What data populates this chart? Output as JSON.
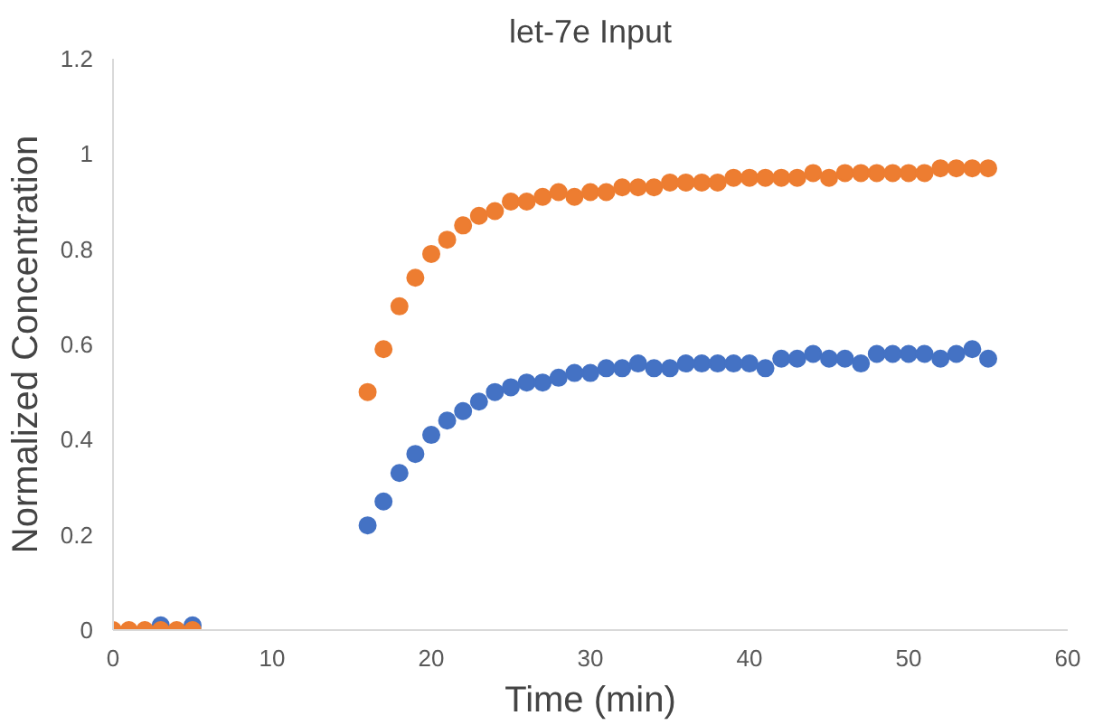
{
  "chart_data": {
    "type": "scatter",
    "title": "let-7e Input",
    "xlabel": "Time (min)",
    "ylabel": "Normalized Concentration",
    "marker": "circle",
    "grid": false,
    "xlim": [
      0,
      60
    ],
    "xticks": [
      0,
      10,
      20,
      30,
      40,
      50,
      60
    ],
    "ylim": [
      0,
      1.2
    ],
    "yticks": [
      0,
      0.2,
      0.4,
      0.6,
      0.8,
      1,
      1.2
    ],
    "x": [
      0,
      1,
      2,
      3,
      4,
      5,
      16,
      17,
      18,
      19,
      20,
      21,
      22,
      23,
      24,
      25,
      26,
      27,
      28,
      29,
      30,
      31,
      32,
      33,
      34,
      35,
      36,
      37,
      38,
      39,
      40,
      41,
      42,
      43,
      44,
      45,
      46,
      47,
      48,
      49,
      50,
      51,
      52,
      53,
      54,
      55
    ],
    "series": [
      {
        "color": "#4472c4",
        "values": [
          null,
          null,
          null,
          0.01,
          null,
          0.01,
          0.22,
          0.27,
          0.33,
          0.37,
          0.41,
          0.44,
          0.46,
          0.48,
          0.5,
          0.51,
          0.52,
          0.52,
          0.53,
          0.54,
          0.54,
          0.55,
          0.55,
          0.56,
          0.55,
          0.55,
          0.56,
          0.56,
          0.56,
          0.56,
          0.56,
          0.55,
          0.57,
          0.57,
          0.58,
          0.57,
          0.57,
          0.56,
          0.58,
          0.58,
          0.58,
          0.58,
          0.57,
          0.58,
          0.59,
          0.57
        ]
      },
      {
        "color": "#ed7d31",
        "values": [
          0,
          0,
          0,
          0,
          0,
          0,
          0.5,
          0.59,
          0.68,
          0.74,
          0.79,
          0.82,
          0.85,
          0.87,
          0.88,
          0.9,
          0.9,
          0.91,
          0.92,
          0.91,
          0.92,
          0.92,
          0.93,
          0.93,
          0.93,
          0.94,
          0.94,
          0.94,
          0.94,
          0.95,
          0.95,
          0.95,
          0.95,
          0.95,
          0.96,
          0.95,
          0.96,
          0.96,
          0.96,
          0.96,
          0.96,
          0.96,
          0.97,
          0.97,
          0.97,
          0.97
        ]
      }
    ]
  }
}
